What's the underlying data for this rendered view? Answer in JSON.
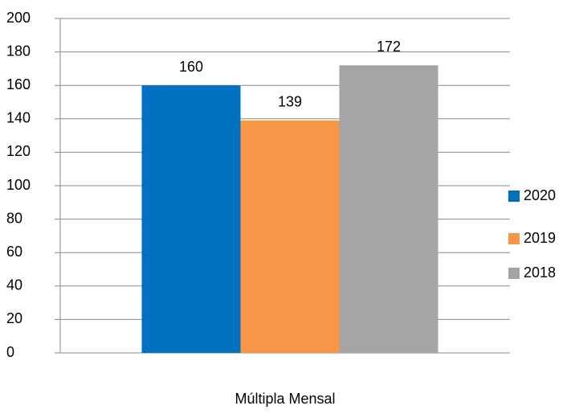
{
  "chart_data": {
    "type": "bar",
    "categories": [
      "Múltipla Mensal"
    ],
    "series": [
      {
        "name": "2020",
        "color": "#0070c0",
        "values": [
          160
        ]
      },
      {
        "name": "2019",
        "color": "#f79646",
        "values": [
          139
        ]
      },
      {
        "name": "2018",
        "color": "#a5a5a5",
        "values": [
          172
        ]
      }
    ],
    "ylim": [
      0,
      200
    ],
    "yticks": [
      0,
      20,
      40,
      60,
      80,
      100,
      120,
      140,
      160,
      180,
      200
    ],
    "grid": true,
    "legend": "right"
  }
}
